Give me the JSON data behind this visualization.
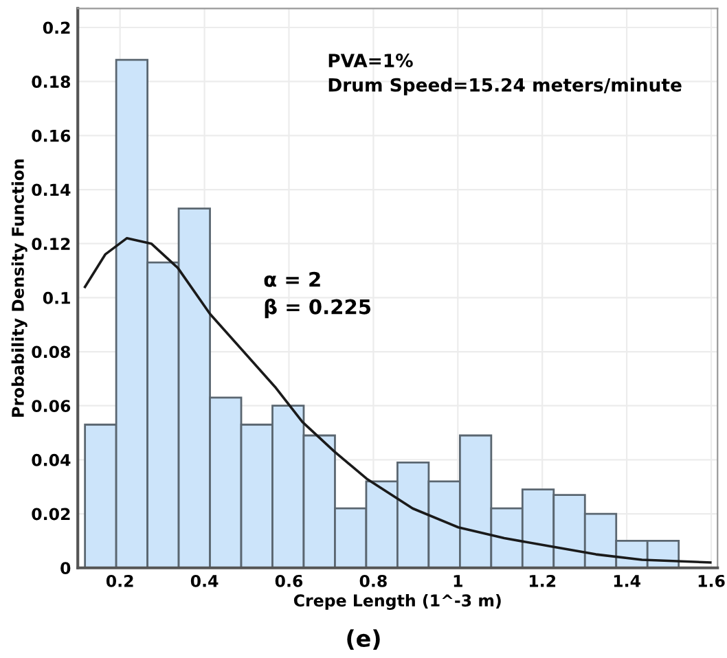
{
  "chart_data": {
    "type": "histogram",
    "xlabel": "Crepe Length (1^-3 m)",
    "ylabel": "Probability Density Function",
    "bins": [
      0.117,
      0.191,
      0.265,
      0.339,
      0.413,
      0.487,
      0.561,
      0.635,
      0.709,
      0.783,
      0.857,
      0.931,
      1.005,
      1.079,
      1.153,
      1.227,
      1.301,
      1.375,
      1.449,
      1.523
    ],
    "values": [
      0.053,
      0.188,
      0.113,
      0.133,
      0.063,
      0.053,
      0.06,
      0.049,
      0.022,
      0.032,
      0.039,
      0.032,
      0.049,
      0.022,
      0.029,
      0.027,
      0.02,
      0.01,
      0.01
    ],
    "color": "#cce4fa",
    "series": [
      {
        "type": "line",
        "color": "#1a1a1a",
        "x": [
          0.117,
          0.165,
          0.216,
          0.274,
          0.337,
          0.413,
          0.567,
          0.632,
          0.708,
          0.784,
          0.893,
          1.001,
          1.11,
          1.218,
          1.327,
          1.436,
          1.598
        ],
        "values": [
          0.104,
          0.116,
          0.122,
          0.12,
          0.111,
          0.094,
          0.067,
          0.054,
          0.043,
          0.033,
          0.022,
          0.015,
          0.011,
          0.008,
          0.005,
          0.003,
          0.002
        ]
      }
    ],
    "xlim": [
      0.1,
      1.615
    ],
    "ylim": [
      0,
      0.207
    ],
    "xticks": [
      0.2,
      0.4,
      0.6,
      0.8,
      1,
      1.2,
      1.4,
      1.6
    ],
    "yticks": [
      0,
      0.02,
      0.04,
      0.06,
      0.08,
      0.1,
      0.12,
      0.14,
      0.16,
      0.18,
      0.2
    ],
    "grid": true,
    "annotations": [
      "PVA=1%\nDrum Speed=15.24 meters/minute",
      "α = 2\nβ = 0.225",
      "(e)"
    ]
  }
}
